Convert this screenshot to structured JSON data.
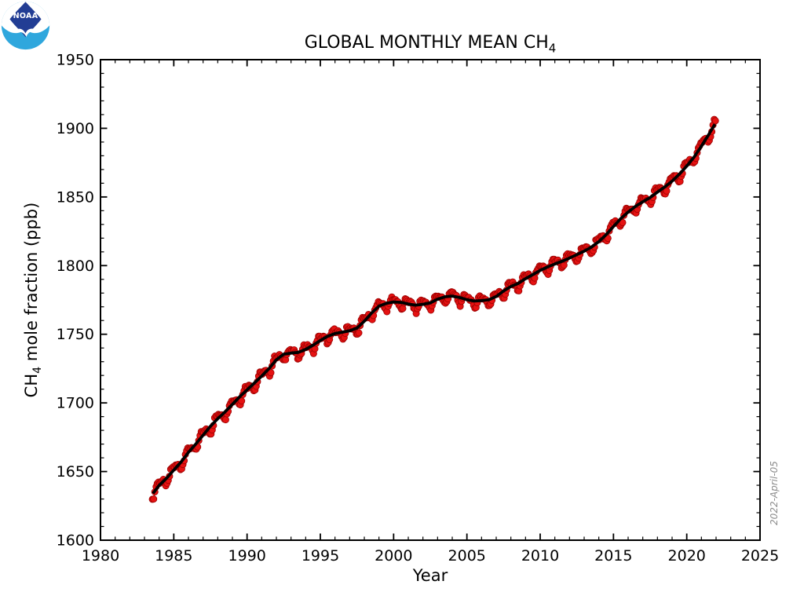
{
  "figure": {
    "background": "#ffffff",
    "watermark": "2022-April-05",
    "watermark_color": "#8c8c8c"
  },
  "logo": {
    "agency": "NOAA",
    "text": "NOAA",
    "colors": {
      "navy": "#223d94",
      "light_blue": "#2fa7dd",
      "white": "#ffffff"
    }
  },
  "chart_data": {
    "type": "scatter+line",
    "title": "GLOBAL MONTHLY MEAN CH4",
    "title_parts": {
      "pre": "GLOBAL MONTHLY MEAN CH",
      "sub": "4"
    },
    "xlabel": "Year",
    "ylabel": "CH4 mole fraction (ppb)",
    "ylabel_parts": {
      "pre": "CH",
      "sub": "4",
      "post": " mole fraction (ppb)"
    },
    "xlim": [
      1980,
      2025
    ],
    "ylim": [
      1600,
      1950
    ],
    "xticks": [
      1980,
      1985,
      1990,
      1995,
      2000,
      2005,
      2010,
      2015,
      2020,
      2025
    ],
    "yticks": [
      1600,
      1650,
      1700,
      1750,
      1800,
      1850,
      1900,
      1950
    ],
    "x_minor_step": 1,
    "y_minor_step": 10,
    "grid": false,
    "legend": null,
    "frame_color": "#000000",
    "series": [
      {
        "name": "monthly_mean",
        "type": "scatter",
        "marker": "circle",
        "color": "#e51212",
        "edge_color": "#990000",
        "marker_radius": 4.1,
        "connect_line_width": 1.3,
        "cadence": "monthly",
        "first_month": "1983-07",
        "last_month": "2021-12",
        "start_decimal_year": 1983.542,
        "end_decimal_year": 2021.958,
        "first_value_ppb": 1626,
        "last_value_ppb": 1909,
        "values_model": "trend_interpolation_plus_seasonal_cycle_plus_noise",
        "seasonal_cycle_ppb": [
          1.8,
          1.6,
          1.1,
          0.3,
          -1.8,
          -4.2,
          -5.2,
          -3.6,
          -0.8,
          2.2,
          3.2,
          2.6
        ],
        "scatter_noise_ppb": 1.2
      },
      {
        "name": "deseasonalized_trend",
        "type": "line",
        "color": "#000000",
        "line_width": 3.8,
        "x": [
          1983.58,
          1984,
          1984.5,
          1985,
          1985.5,
          1986,
          1986.5,
          1987,
          1987.5,
          1988,
          1988.5,
          1989,
          1989.5,
          1990,
          1990.5,
          1991,
          1991.5,
          1992,
          1992.5,
          1993,
          1993.5,
          1994,
          1994.5,
          1995,
          1995.5,
          1996,
          1996.5,
          1997,
          1997.5,
          1998,
          1998.5,
          1999,
          1999.5,
          2000,
          2000.5,
          2001,
          2001.5,
          2002,
          2002.5,
          2003,
          2003.5,
          2004,
          2004.5,
          2005,
          2005.5,
          2006,
          2006.5,
          2007,
          2007.5,
          2008,
          2008.5,
          2009,
          2009.5,
          2010,
          2010.5,
          2011,
          2011.5,
          2012,
          2012.5,
          2013,
          2013.5,
          2014,
          2014.5,
          2015,
          2015.5,
          2016,
          2016.5,
          2017,
          2017.5,
          2018,
          2018.5,
          2019,
          2019.5,
          2020,
          2020.5,
          2021,
          2021.5,
          2021.92
        ],
        "y": [
          1634,
          1640,
          1645,
          1651,
          1657,
          1664,
          1670,
          1676.5,
          1683,
          1688.5,
          1693.5,
          1699,
          1704.5,
          1709.5,
          1714.5,
          1719.5,
          1725,
          1731.5,
          1735.5,
          1736.3,
          1736.8,
          1739,
          1742,
          1745.5,
          1748.5,
          1750.5,
          1751.5,
          1752.5,
          1754.5,
          1759.5,
          1765.5,
          1770.5,
          1772.5,
          1773.5,
          1773.2,
          1772,
          1771.2,
          1771.8,
          1772.8,
          1775.5,
          1777.3,
          1777.8,
          1776.8,
          1775.2,
          1774.2,
          1774.5,
          1775.2,
          1777.5,
          1781.5,
          1784.8,
          1787,
          1790.5,
          1793.5,
          1796.5,
          1799,
          1801.2,
          1803.2,
          1805.5,
          1808,
          1810.5,
          1813.5,
          1817.5,
          1822.5,
          1828.5,
          1834.3,
          1839,
          1843.1,
          1846.5,
          1849.6,
          1853.5,
          1857.3,
          1861.5,
          1866.6,
          1872.5,
          1879,
          1887,
          1895.5,
          1903
        ]
      }
    ]
  }
}
